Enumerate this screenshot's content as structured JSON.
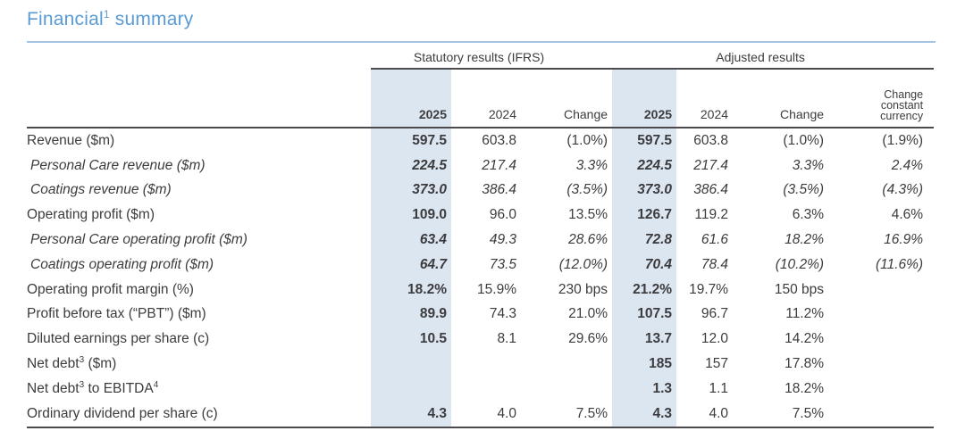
{
  "title": {
    "pre": "Financial",
    "sup": "1",
    "post": " summary"
  },
  "colors": {
    "title_blue": "#5b9bd5",
    "rule_blue": "#a3c4e4",
    "column_highlight": "#dce6f1",
    "text": "#3c3c3e",
    "line_dark": "#4b4b4d"
  },
  "table": {
    "groups": [
      {
        "label": "Statutory results (IFRS)"
      },
      {
        "label": "Adjusted results"
      }
    ],
    "col_headers": [
      {
        "label": "2025",
        "bold": true,
        "highlight": true
      },
      {
        "label": "2024"
      },
      {
        "label": "Change"
      },
      {
        "label": "2025",
        "bold": true,
        "highlight": true
      },
      {
        "label": "2024"
      },
      {
        "label": "Change"
      },
      {
        "label": "Change constant currency",
        "lines": [
          "Change",
          "constant",
          "currency"
        ],
        "small": true
      }
    ],
    "rows": [
      {
        "label": [
          {
            "t": "Revenue ($m)"
          }
        ],
        "italic": false,
        "cells": [
          "597.5",
          "603.8",
          "(1.0%)",
          "597.5",
          "603.8",
          "(1.0%)",
          "(1.9%)"
        ]
      },
      {
        "label": [
          {
            "t": "Personal Care revenue ($m)"
          }
        ],
        "italic": true,
        "cells": [
          "224.5",
          "217.4",
          "3.3%",
          "224.5",
          "217.4",
          "3.3%",
          "2.4%"
        ]
      },
      {
        "label": [
          {
            "t": "Coatings revenue ($m)"
          }
        ],
        "italic": true,
        "cells": [
          "373.0",
          "386.4",
          "(3.5%)",
          "373.0",
          "386.4",
          "(3.5%)",
          "(4.3%)"
        ]
      },
      {
        "label": [
          {
            "t": "Operating profit ($m)"
          }
        ],
        "italic": false,
        "cells": [
          "109.0",
          "96.0",
          "13.5%",
          "126.7",
          "119.2",
          "6.3%",
          "4.6%"
        ]
      },
      {
        "label": [
          {
            "t": "Personal Care operating profit ($m)"
          }
        ],
        "italic": true,
        "cells": [
          "63.4",
          "49.3",
          "28.6%",
          "72.8",
          "61.6",
          "18.2%",
          "16.9%"
        ]
      },
      {
        "label": [
          {
            "t": "Coatings operating profit ($m)"
          }
        ],
        "italic": true,
        "cells": [
          "64.7",
          "73.5",
          "(12.0%)",
          "70.4",
          "78.4",
          "(10.2%)",
          "(11.6%)"
        ]
      },
      {
        "label": [
          {
            "t": "Operating profit margin (%)"
          }
        ],
        "italic": false,
        "cells": [
          "18.2%",
          "15.9%",
          "230 bps",
          "21.2%",
          "19.7%",
          "150 bps",
          ""
        ]
      },
      {
        "label": [
          {
            "t": "Profit before tax (“PBT”) ($m)"
          }
        ],
        "italic": false,
        "cells": [
          "89.9",
          "74.3",
          "21.0%",
          "107.5",
          "96.7",
          "11.2%",
          ""
        ]
      },
      {
        "label": [
          {
            "t": "Diluted earnings per share (c)"
          }
        ],
        "italic": false,
        "cells": [
          "10.5",
          "8.1",
          "29.6%",
          "13.7",
          "12.0",
          "14.2%",
          ""
        ]
      },
      {
        "label": [
          {
            "t": "Net debt"
          },
          {
            "s": "3"
          },
          {
            "t": " ($m)"
          }
        ],
        "italic": false,
        "cells": [
          "",
          "",
          "",
          "185",
          "157",
          "17.8%",
          ""
        ]
      },
      {
        "label": [
          {
            "t": "Net debt"
          },
          {
            "s": "3"
          },
          {
            "t": " to EBITDA"
          },
          {
            "s": "4"
          }
        ],
        "italic": false,
        "cells": [
          "",
          "",
          "",
          "1.3",
          "1.1",
          "18.2%",
          ""
        ]
      },
      {
        "label": [
          {
            "t": "Ordinary dividend per share (c)"
          }
        ],
        "italic": false,
        "cells": [
          "4.3",
          "4.0",
          "7.5%",
          "4.3",
          "4.0",
          "7.5%",
          ""
        ]
      }
    ]
  }
}
